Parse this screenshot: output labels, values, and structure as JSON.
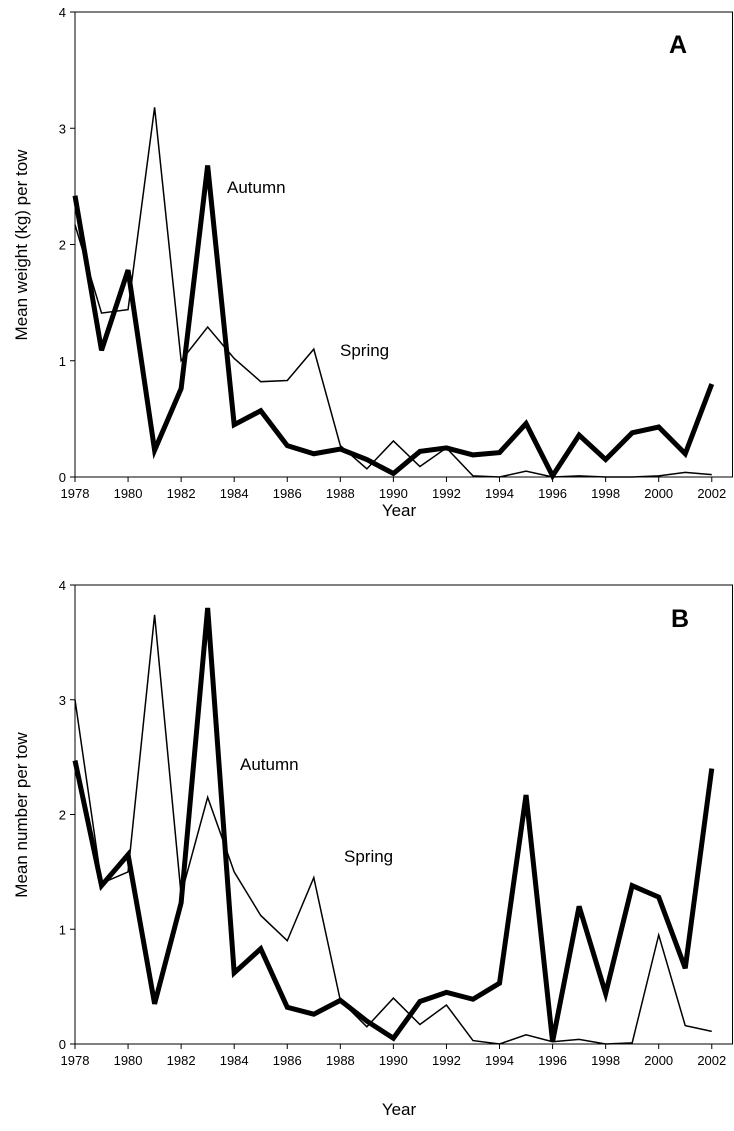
{
  "chart_data": [
    {
      "type": "line",
      "panel_label": "A",
      "x_label": "Year",
      "y_label": "Mean weight (kg) per tow",
      "x": [
        1978,
        1979,
        1980,
        1981,
        1982,
        1983,
        1984,
        1985,
        1986,
        1987,
        1988,
        1989,
        1990,
        1991,
        1992,
        1993,
        1994,
        1995,
        1996,
        1997,
        1998,
        1999,
        2000,
        2001,
        2002
      ],
      "series": [
        {
          "name": "Autumn",
          "color": "#000000",
          "values": [
            2.42,
            1.09,
            1.78,
            0.23,
            0.76,
            2.68,
            0.45,
            0.57,
            0.27,
            0.2,
            0.24,
            0.15,
            0.03,
            0.22,
            0.25,
            0.19,
            0.21,
            0.46,
            0.01,
            0.36,
            0.15,
            0.38,
            0.43,
            0.2,
            0.8
          ]
        },
        {
          "name": "Spring",
          "color": "#000000",
          "values": [
            2.17,
            1.41,
            1.44,
            3.18,
            1.0,
            1.29,
            1.02,
            0.82,
            0.83,
            1.1,
            0.27,
            0.07,
            0.31,
            0.09,
            0.25,
            0.01,
            0.0,
            0.05,
            0.0,
            0.01,
            0.0,
            0.0,
            0.01,
            0.04,
            0.02
          ]
        }
      ],
      "xlim": [
        1978,
        2002.8
      ],
      "xticks": [
        1978,
        1980,
        1982,
        1984,
        1986,
        1988,
        1990,
        1992,
        1994,
        1996,
        1998,
        2000,
        2002
      ],
      "ylim": [
        0,
        4
      ],
      "yticks": [
        0,
        1,
        2,
        3,
        4
      ]
    },
    {
      "type": "line",
      "panel_label": "B",
      "x_label": "Year",
      "y_label": "Mean number per tow",
      "x": [
        1978,
        1979,
        1980,
        1981,
        1982,
        1983,
        1984,
        1985,
        1986,
        1987,
        1988,
        1989,
        1990,
        1991,
        1992,
        1993,
        1994,
        1995,
        1996,
        1997,
        1998,
        1999,
        2000,
        2001,
        2002
      ],
      "series": [
        {
          "name": "Autumn",
          "color": "#000000",
          "values": [
            2.47,
            1.38,
            1.65,
            0.35,
            1.23,
            3.8,
            0.62,
            0.83,
            0.32,
            0.26,
            0.38,
            0.2,
            0.05,
            0.37,
            0.45,
            0.39,
            0.53,
            2.17,
            0.02,
            1.2,
            0.44,
            1.38,
            1.28,
            0.66,
            2.4
          ]
        },
        {
          "name": "Spring",
          "color": "#000000",
          "values": [
            3.0,
            1.4,
            1.5,
            3.74,
            1.3,
            2.15,
            1.5,
            1.12,
            0.9,
            1.45,
            0.38,
            0.15,
            0.4,
            0.17,
            0.34,
            0.03,
            0.0,
            0.08,
            0.02,
            0.04,
            0.0,
            0.01,
            0.95,
            0.16,
            0.11
          ]
        }
      ],
      "xlim": [
        1978,
        2002.8
      ],
      "xticks": [
        1978,
        1980,
        1982,
        1984,
        1986,
        1988,
        1990,
        1992,
        1994,
        1996,
        1998,
        2000,
        2002
      ],
      "ylim": [
        0,
        4
      ],
      "yticks": [
        0,
        1,
        2,
        3,
        4
      ]
    }
  ]
}
